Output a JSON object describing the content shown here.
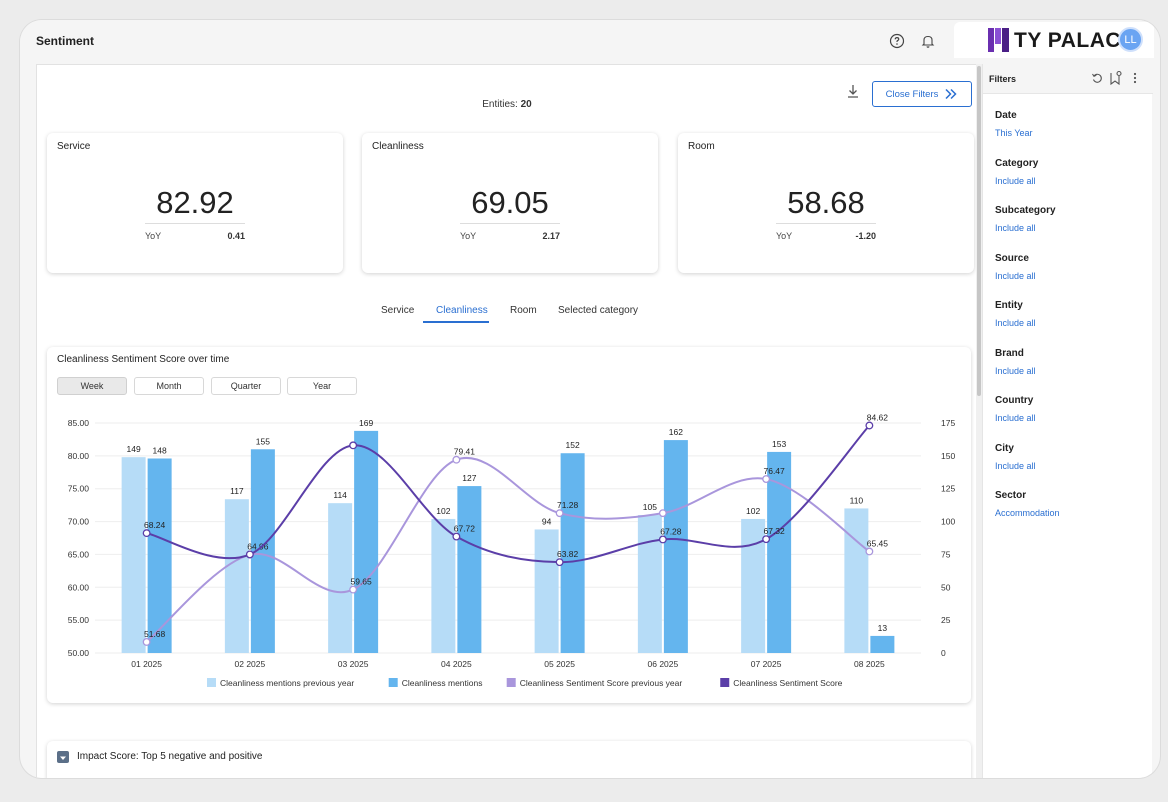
{
  "header": {
    "title": "Sentiment",
    "brand": "TY PALACE",
    "avatar_initials": "LL"
  },
  "toolbar": {
    "entities_label": "Entities:",
    "entities_value": "20",
    "close_filters_label": "Close Filters"
  },
  "kpis": [
    {
      "name": "Service",
      "value": "82.92",
      "yoy_label": "YoY",
      "yoy_value": "0.41"
    },
    {
      "name": "Cleanliness",
      "value": "69.05",
      "yoy_label": "YoY",
      "yoy_value": "2.17"
    },
    {
      "name": "Room",
      "value": "58.68",
      "yoy_label": "YoY",
      "yoy_value": "-1.20"
    }
  ],
  "tabs": [
    {
      "label": "Service"
    },
    {
      "label": "Cleanliness"
    },
    {
      "label": "Room"
    },
    {
      "label": "Selected category"
    }
  ],
  "active_tab": "Cleanliness",
  "chart": {
    "title": "Cleanliness Sentiment Score over time",
    "granularity": [
      "Week",
      "Month",
      "Quarter",
      "Year"
    ],
    "active_granularity": "Week"
  },
  "chart_data": {
    "type": "bar",
    "categories": [
      "01 2025",
      "02 2025",
      "03 2025",
      "04 2025",
      "05 2025",
      "06 2025",
      "07 2025",
      "08 2025"
    ],
    "left_axis": {
      "min": 50,
      "max": 85,
      "ticks": [
        "50.00",
        "55.00",
        "60.00",
        "65.00",
        "70.00",
        "75.00",
        "80.00",
        "85.00"
      ]
    },
    "right_axis": {
      "min": 0,
      "max": 175,
      "ticks": [
        "0",
        "25",
        "50",
        "75",
        "100",
        "125",
        "150",
        "175"
      ]
    },
    "series": [
      {
        "name": "Cleanliness mentions previous year",
        "kind": "bar",
        "axis": "right",
        "color": "#b6dcf7",
        "values": [
          149,
          117,
          114,
          102,
          94,
          105,
          102,
          110
        ]
      },
      {
        "name": "Cleanliness mentions",
        "kind": "bar",
        "axis": "right",
        "color": "#64b5ee",
        "values": [
          148,
          155,
          169,
          127,
          152,
          162,
          153,
          13
        ]
      },
      {
        "name": "Cleanliness Sentiment Score previous year",
        "kind": "line",
        "axis": "left",
        "color": "#a996dc",
        "values": [
          51.68,
          64.96,
          59.65,
          79.41,
          71.28,
          71.28,
          76.47,
          65.45
        ],
        "labels": [
          "51.68",
          "64.96",
          "59.65",
          "79.41",
          "71.28",
          "",
          "76.47",
          "65.45"
        ]
      },
      {
        "name": "Cleanliness Sentiment Score",
        "kind": "line",
        "axis": "left",
        "color": "#5b3ea8",
        "values": [
          68.24,
          65.0,
          81.6,
          67.72,
          63.82,
          67.28,
          67.32,
          84.62
        ],
        "labels": [
          "68.24",
          "",
          "",
          "67.72",
          "63.82",
          "67.28",
          "67.32",
          "84.62"
        ]
      }
    ],
    "legend_position": "bottom",
    "grid": true
  },
  "impact": {
    "title": "Impact Score: Top 5 negative and positive"
  },
  "filters": {
    "title": "Filters",
    "groups": [
      {
        "label": "Date",
        "value": "This Year"
      },
      {
        "label": "Category",
        "value": "Include all"
      },
      {
        "label": "Subcategory",
        "value": "Include all"
      },
      {
        "label": "Source",
        "value": "Include all"
      },
      {
        "label": "Entity",
        "value": "Include all"
      },
      {
        "label": "Brand",
        "value": "Include all"
      },
      {
        "label": "Country",
        "value": "Include all"
      },
      {
        "label": "City",
        "value": "Include all"
      },
      {
        "label": "Sector",
        "value": "Accommodation"
      }
    ]
  }
}
